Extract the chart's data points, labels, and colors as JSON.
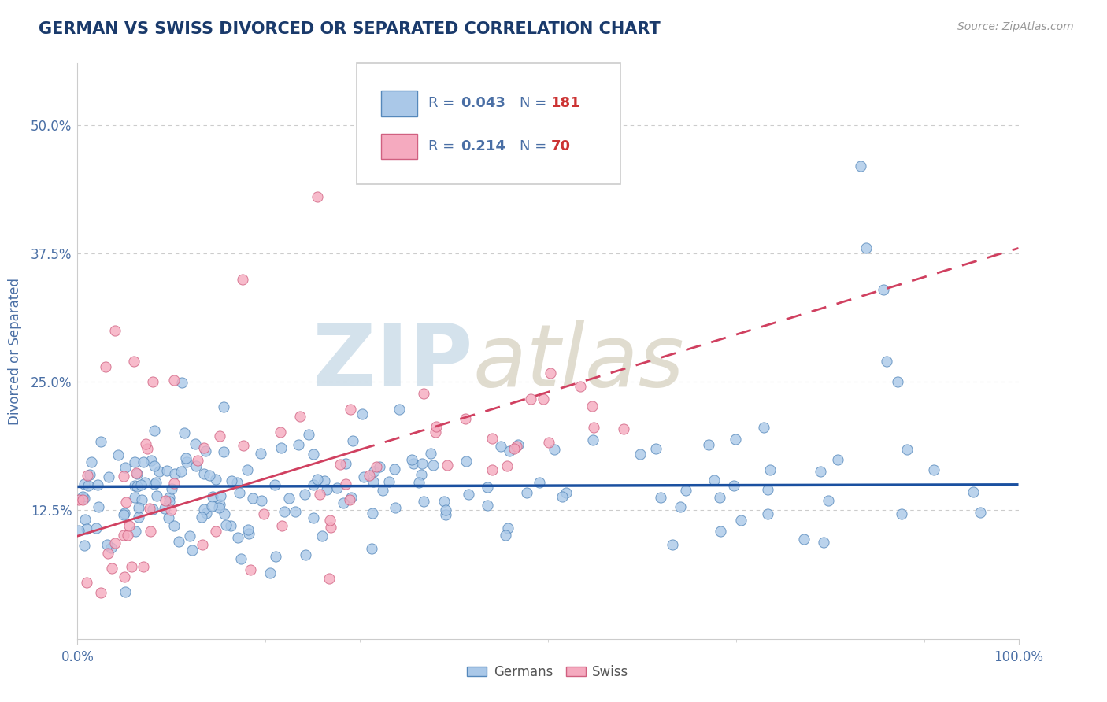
{
  "title": "GERMAN VS SWISS DIVORCED OR SEPARATED CORRELATION CHART",
  "source_text": "Source: ZipAtlas.com",
  "ylabel": "Divorced or Separated",
  "xlim": [
    0,
    1.0
  ],
  "ylim": [
    0,
    0.56
  ],
  "yticks": [
    0.125,
    0.25,
    0.375,
    0.5
  ],
  "yticklabels": [
    "12.5%",
    "25.0%",
    "37.5%",
    "50.0%"
  ],
  "grid_yticks": [
    0.125,
    0.25,
    0.375,
    0.5
  ],
  "german_color": "#aac8e8",
  "swiss_color": "#f5aabf",
  "german_edge_color": "#5588bb",
  "swiss_edge_color": "#d06080",
  "trend_german_color": "#1a50a0",
  "trend_swiss_color": "#d04060",
  "title_color": "#1a3a6b",
  "axis_color": "#4a6fa5",
  "tick_color": "#888888",
  "source_color": "#999999",
  "legend_r_color": "#4a6fa5",
  "legend_n_color": "#cc3333",
  "watermark_zip_color": "#b8cfe0",
  "watermark_atlas_color": "#c8c0a8",
  "background_color": "#ffffff"
}
